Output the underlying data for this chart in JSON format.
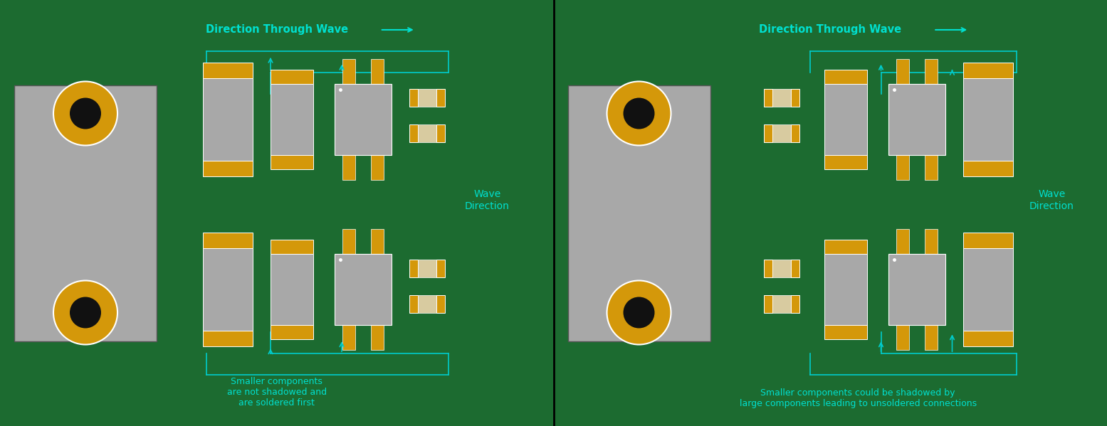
{
  "bg_color": "#1c6b30",
  "gray": "#a8a8a8",
  "gold": "#d4980a",
  "white": "#ffffff",
  "cyan": "#00cccc",
  "cyan_text": "#00e0d0",
  "black": "#111111",
  "beige": "#d8cba0",
  "title": "Direction Through Wave",
  "caption_left": "Smaller components\nare not shadowed and\nare soldered first",
  "caption_right": "Smaller components could be shadowed by\nlarge components leading to unsoldered connections"
}
